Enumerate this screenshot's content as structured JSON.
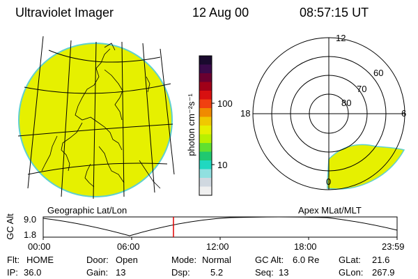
{
  "header": {
    "instrument": "Ultraviolet Imager",
    "date": "12 Aug 00",
    "time": "08:57:15 UT"
  },
  "geo_panel": {
    "label": "Geographic Lat/Lon",
    "fill_color": "#e6f000",
    "limb_color": "#5fd0d0"
  },
  "colorbar": {
    "unit": "photon cm⁻²s⁻¹",
    "tick_labels": [
      "100",
      "10"
    ],
    "colors_top_to_bottom": [
      "#1a0a2e",
      "#3a0a4a",
      "#6a0030",
      "#a00018",
      "#d81010",
      "#f04010",
      "#f08a00",
      "#f0c800",
      "#e6f000",
      "#b8f000",
      "#60e030",
      "#20c870",
      "#20d8c0",
      "#90e0e0",
      "#d0d8e0",
      "#f0f0f0"
    ]
  },
  "polar_panel": {
    "label": "Apex MLat/MLT",
    "mlt_labels": [
      "12",
      "18",
      "6",
      "0"
    ],
    "mlat_labels": [
      "60",
      "70",
      "80"
    ]
  },
  "orbit_plot": {
    "ylabel": "GC Alt",
    "y_ticks": [
      "9.0",
      "1.8"
    ],
    "x_ticks": [
      "00:00",
      "06:00",
      "12:00",
      "18:00",
      "23:59"
    ],
    "current_time_marker_color": "#e00000"
  },
  "info": {
    "row1": [
      {
        "label": "Flt:",
        "value": "HOME"
      },
      {
        "label": "Door:",
        "value": "Open"
      },
      {
        "label": "Mode:",
        "value": "Normal"
      },
      {
        "label": "GC Alt:",
        "value": "6.0 Re"
      },
      {
        "label": "GLat:",
        "value": "21.6"
      }
    ],
    "row2": [
      {
        "label": "IP:",
        "value": "36.0"
      },
      {
        "label": "Gain:",
        "value": "13"
      },
      {
        "label": "Dsp:",
        "value": "5.2"
      },
      {
        "label": "Seq:",
        "value": "13"
      },
      {
        "label": "GLon:",
        "value": "267.9"
      }
    ]
  }
}
